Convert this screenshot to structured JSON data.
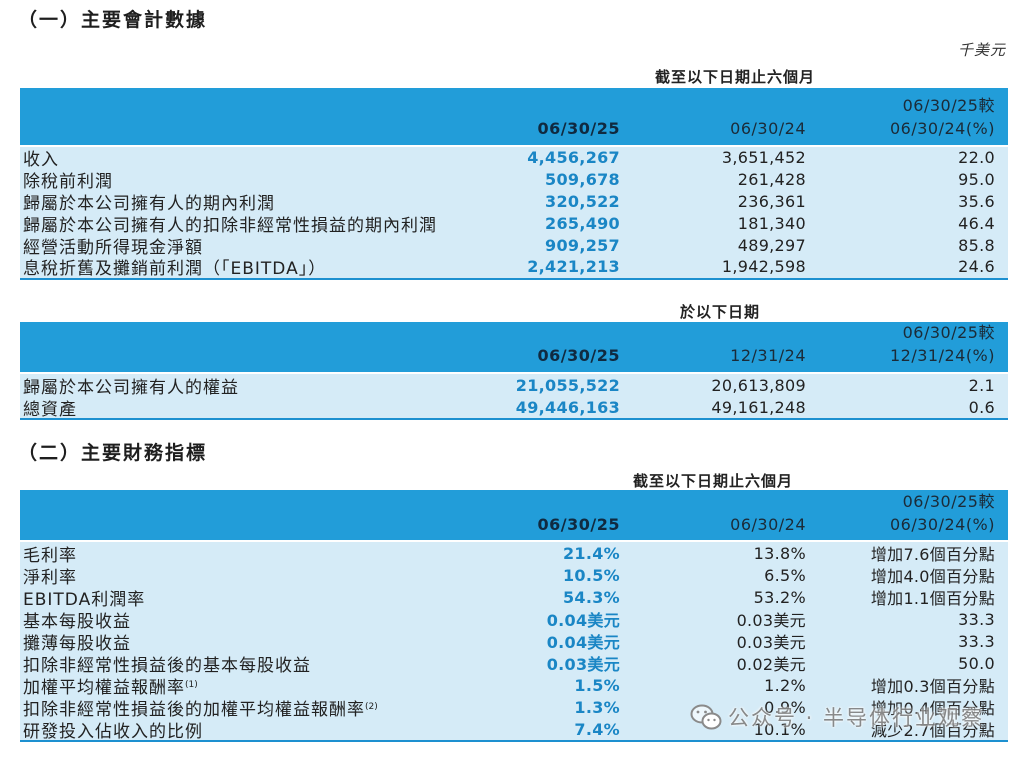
{
  "section1": {
    "title": "（一）主要會計數據",
    "unit": "千美元"
  },
  "table1": {
    "caption": "截至以下日期止六個月",
    "headers": {
      "current": "06/30/25",
      "prior": "06/30/24",
      "change_line1": "06/30/25較",
      "change_line2": "06/30/24(%)"
    },
    "rows": [
      {
        "label": "收入",
        "current": "4,456,267",
        "prior": "3,651,452",
        "change": "22.0"
      },
      {
        "label": "除稅前利潤",
        "current": "509,678",
        "prior": "261,428",
        "change": "95.0"
      },
      {
        "label": "歸屬於本公司擁有人的期內利潤",
        "current": "320,522",
        "prior": "236,361",
        "change": "35.6"
      },
      {
        "label": "歸屬於本公司擁有人的扣除非經常性損益的期內利潤",
        "current": "265,490",
        "prior": "181,340",
        "change": "46.4"
      },
      {
        "label": "經營活動所得現金淨額",
        "current": "909,257",
        "prior": "489,297",
        "change": "85.8"
      },
      {
        "label": "息稅折舊及攤銷前利潤（「EBITDA」）",
        "current": "2,421,213",
        "prior": "1,942,598",
        "change": "24.6"
      }
    ]
  },
  "table2": {
    "caption": "於以下日期",
    "headers": {
      "current": "06/30/25",
      "prior": "12/31/24",
      "change_line1": "06/30/25較",
      "change_line2": "12/31/24(%)"
    },
    "rows": [
      {
        "label": "歸屬於本公司擁有人的權益",
        "current": "21,055,522",
        "prior": "20,613,809",
        "change": "2.1"
      },
      {
        "label": "總資產",
        "current": "49,446,163",
        "prior": "49,161,248",
        "change": "0.6"
      }
    ]
  },
  "section2": {
    "title": "（二）主要財務指標"
  },
  "table3": {
    "caption": "截至以下日期止六個月",
    "headers": {
      "current": "06/30/25",
      "prior": "06/30/24",
      "change_line1": "06/30/25較",
      "change_line2": "06/30/24(%)"
    },
    "rows": [
      {
        "label": "毛利率",
        "current": "21.4%",
        "prior": "13.8%",
        "change": "增加7.6個百分點"
      },
      {
        "label": "淨利率",
        "current": "10.5%",
        "prior": "6.5%",
        "change": "增加4.0個百分點"
      },
      {
        "label": "EBITDA利潤率",
        "current": "54.3%",
        "prior": "53.2%",
        "change": "增加1.1個百分點"
      },
      {
        "label": "基本每股收益",
        "current": "0.04美元",
        "prior": "0.03美元",
        "change": "33.3"
      },
      {
        "label": "攤薄每股收益",
        "current": "0.04美元",
        "prior": "0.03美元",
        "change": "33.3"
      },
      {
        "label": "扣除非經常性損益後的基本每股收益",
        "current": "0.03美元",
        "prior": "0.02美元",
        "change": "50.0"
      },
      {
        "label": "加權平均權益報酬率",
        "note": "(1)",
        "current": "1.5%",
        "prior": "1.2%",
        "change": "增加0.3個百分點"
      },
      {
        "label": "扣除非經常性損益後的加權平均權益報酬率",
        "note": "(2)",
        "current": "1.3%",
        "prior": "0.9%",
        "change": "增加0.4個百分點"
      },
      {
        "label": "研發投入佔收入的比例",
        "current": "7.4%",
        "prior": "10.1%",
        "change": "減少2.7個百分點"
      }
    ]
  },
  "watermark": {
    "icon": "wechat-icon",
    "text": "公众号 · 半导体行业观察"
  },
  "colors": {
    "header_band": "#229dd9",
    "body_fill": "#d5ebf7",
    "current_value": "#1a86c5",
    "rule": "#1d90d0"
  }
}
